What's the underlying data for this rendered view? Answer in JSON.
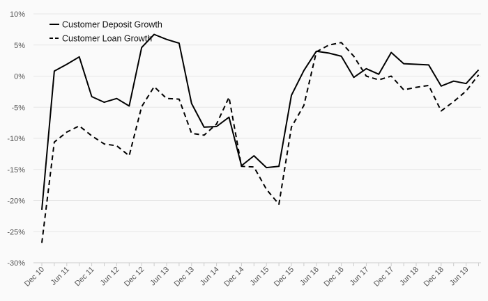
{
  "chart_data": {
    "type": "line",
    "x_tick_labels": [
      "Dec 10",
      "Jun 11",
      "Dec 11",
      "Jun 12",
      "Dec 12",
      "Jun 13",
      "Dec 13",
      "Jun 14",
      "Dec 14",
      "Jun 15",
      "Dec 15",
      "Jun 16",
      "Dec 16",
      "Jun 17",
      "Dec 17",
      "Jun 18",
      "Dec 18",
      "Jun 19"
    ],
    "x": [
      "Dec 10",
      "Mar 11",
      "Jun 11",
      "Sep 11",
      "Dec 11",
      "Mar 12",
      "Jun 12",
      "Sep 12",
      "Dec 12",
      "Mar 13",
      "Jun 13",
      "Sep 13",
      "Dec 13",
      "Mar 14",
      "Jun 14",
      "Sep 14",
      "Dec 14",
      "Mar 15",
      "Jun 15",
      "Sep 15",
      "Dec 15",
      "Mar 16",
      "Jun 16",
      "Sep 16",
      "Dec 16",
      "Mar 17",
      "Jun 17",
      "Sep 17",
      "Dec 17",
      "Mar 18",
      "Jun 18",
      "Sep 18",
      "Dec 18",
      "Mar 19",
      "Jun 19",
      "Sep 19"
    ],
    "y_ticks": [
      10,
      5,
      0,
      -5,
      -10,
      -15,
      -20,
      -25,
      -30
    ],
    "y_tick_labels": [
      "10%",
      "5%",
      "0%",
      "-5%",
      "-10%",
      "-15%",
      "-20%",
      "-25%",
      "-30%"
    ],
    "ylim": [
      -30,
      10
    ],
    "ylabel": "",
    "xlabel": "",
    "title": "",
    "grid": true,
    "legend_position": "top-left",
    "series": [
      {
        "name": "Customer Deposit Growth",
        "style": "solid",
        "color": "#000000",
        "values": [
          -21.5,
          0.8,
          1.9,
          3.1,
          -3.3,
          -4.2,
          -3.6,
          -4.8,
          4.6,
          6.7,
          5.9,
          5.3,
          -4.4,
          -8.2,
          -8.1,
          -6.6,
          -14.4,
          -12.8,
          -14.7,
          -14.5,
          -3.1,
          0.9,
          4.0,
          3.7,
          3.2,
          -0.2,
          1.2,
          0.3,
          3.8,
          2.0,
          1.9,
          1.8,
          -1.6,
          -0.8,
          -1.2,
          1.0
        ]
      },
      {
        "name": "Customer Loan Growth",
        "style": "dashed",
        "color": "#000000",
        "values": [
          -26.8,
          -10.6,
          -9.0,
          -8.0,
          -9.6,
          -10.9,
          -11.2,
          -12.8,
          -4.9,
          -1.7,
          -3.6,
          -3.7,
          -9.2,
          -9.5,
          -7.7,
          -3.4,
          -14.5,
          -14.6,
          -18.2,
          -20.6,
          -8.2,
          -4.7,
          3.9,
          5.0,
          5.4,
          3.2,
          0.0,
          -0.6,
          0.0,
          -2.2,
          -1.8,
          -1.5,
          -5.6,
          -4.1,
          -2.4,
          0.2
        ]
      }
    ]
  }
}
